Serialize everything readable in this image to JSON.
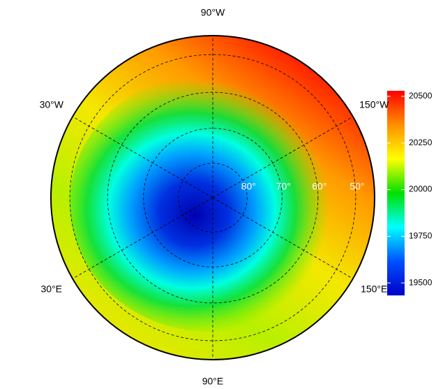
{
  "map": {
    "longitudes": [
      {
        "value": -90,
        "label": "90°W"
      },
      {
        "value": -30,
        "label": "30°W"
      },
      {
        "value": -150,
        "label": "150°W"
      },
      {
        "value": 30,
        "label": "30°E"
      },
      {
        "value": 150,
        "label": "150°E"
      },
      {
        "value": 90,
        "label": "90°E"
      }
    ],
    "latitudes": [
      {
        "value": 80,
        "label": "80°"
      },
      {
        "value": 70,
        "label": "70°"
      },
      {
        "value": 60,
        "label": "60°"
      },
      {
        "value": 50,
        "label": "50°"
      }
    ],
    "colorbar": {
      "lim": [
        19433,
        20530
      ],
      "ticks": [
        19500,
        19750,
        20000,
        20250,
        20500
      ],
      "colors": [
        "#0000c8",
        "#0050ff",
        "#00ffff",
        "#00e000",
        "#ffff00",
        "#ff9000",
        "#ff0000"
      ]
    }
  }
}
